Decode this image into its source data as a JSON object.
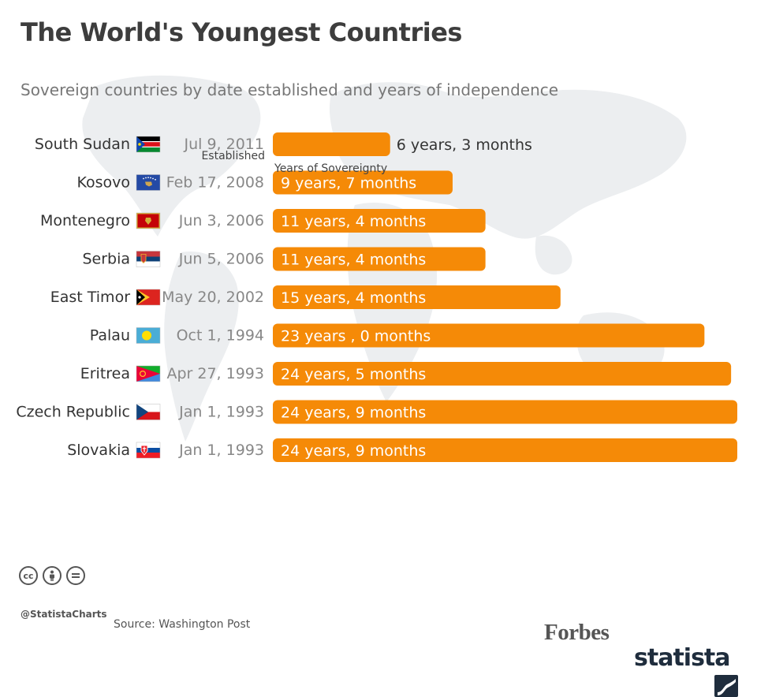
{
  "header": {
    "title": "The World's Youngest Countries",
    "subtitle": "Sovereign countries by date established and years of independence"
  },
  "columns": {
    "established": "Established",
    "years": "Years of Sovereignty"
  },
  "chart_data": {
    "type": "bar",
    "orientation": "horizontal",
    "categories": [
      "South Sudan",
      "Kosovo",
      "Montenegro",
      "Serbia",
      "East Timor",
      "Palau",
      "Eritrea",
      "Czech Republic",
      "Slovakia"
    ],
    "established": [
      "Jul 9, 2011",
      "Feb 17, 2008",
      "Jun 3, 2006",
      "Jun 5, 2006",
      "May 20, 2002",
      "Oct 1, 1994",
      "Apr 27, 1993",
      "Jan 1, 1993",
      "Jan 1, 1993"
    ],
    "labels": [
      "6 years, 3 months",
      "9 years, 7 months",
      "11 years, 4 months",
      "11 years, 4 months",
      "15 years, 4 months",
      "23 years , 0 months",
      "24 years, 5 months",
      "24 years, 9 months",
      "24 years, 9 months"
    ],
    "values": [
      6.25,
      9.58,
      11.33,
      11.33,
      15.33,
      23.0,
      24.42,
      24.75,
      24.75
    ],
    "flags": [
      "south-sudan-flag",
      "kosovo-flag",
      "montenegro-flag",
      "serbia-flag",
      "east-timor-flag",
      "palau-flag",
      "eritrea-flag",
      "czech-flag",
      "slovakia-flag"
    ],
    "bar_color": "#f58a07"
  },
  "footer": {
    "handle": "@StatistaCharts",
    "source": "Source: Washington Post",
    "brand1": "Forbes",
    "brand2": "statista",
    "cc_icons": [
      "cc-icon",
      "by-icon",
      "nd-icon"
    ]
  }
}
